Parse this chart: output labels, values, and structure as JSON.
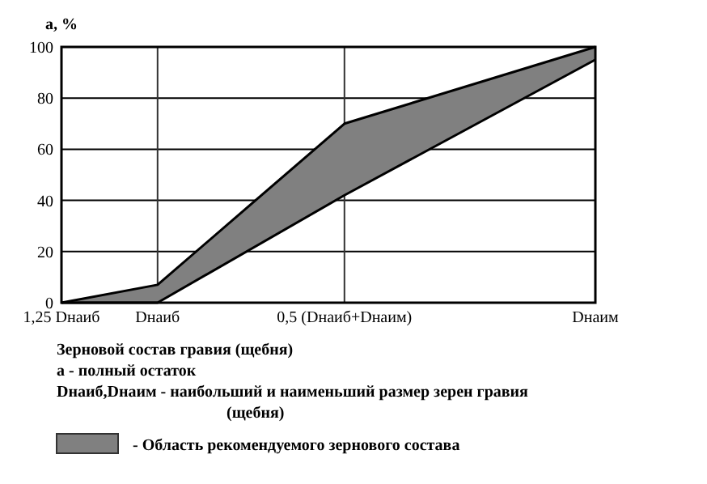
{
  "chart_data": {
    "type": "area",
    "ylabel": "а, %",
    "categories": [
      "1,25 Dнаиб",
      "Dнаиб",
      "0,5 (Dнаиб+Dнаим)",
      "Dнаим"
    ],
    "series": [
      {
        "name": "- Область рекомендуемого зернового состава",
        "color": "#808080",
        "values": [
          0,
          7,
          70,
          100
        ]
      },
      {
        "type": "line",
        "color": "#000000",
        "values": [
          0,
          0,
          42,
          95
        ]
      }
    ],
    "ylim": [
      0,
      100
    ],
    "yticks": [
      0,
      20,
      40,
      60,
      80,
      100
    ],
    "grid": true,
    "legend": "bottom",
    "annotations": [
      "Зерновой состав гравия (щебня)",
      "а - полный остаток",
      "Dнаиб,Dнаим - наибольший и наименьший размер зерен гравия",
      "(щебня)"
    ]
  }
}
